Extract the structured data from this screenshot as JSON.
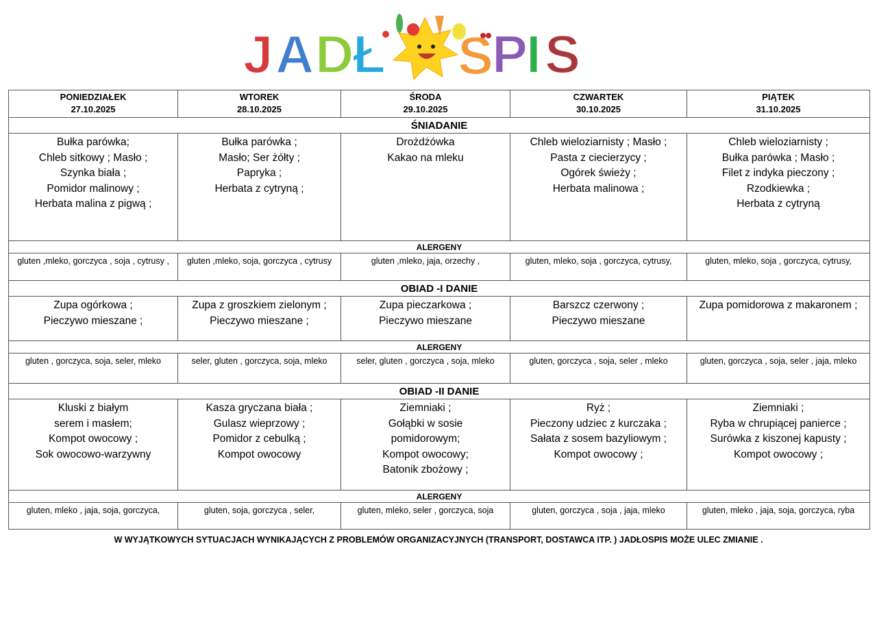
{
  "logo": {
    "text": "JADŁOSPIS"
  },
  "days": [
    {
      "name": "PONIEDZIAŁEK",
      "date": "27.10.2025"
    },
    {
      "name": "WTOREK",
      "date": "28.10.2025"
    },
    {
      "name": "ŚRODA",
      "date": "29.10.2025"
    },
    {
      "name": "CZWARTEK",
      "date": "30.10.2025"
    },
    {
      "name": "PIĄTEK",
      "date": "31.10.2025"
    }
  ],
  "sections": {
    "breakfast": "ŚNIADANIE",
    "lunch1": "OBIAD -I DANIE",
    "lunch2": "OBIAD -II DANIE",
    "allergens": "ALERGENY"
  },
  "breakfast": [
    [
      "Bułka parówka;",
      "Chleb sitkowy ; Masło ;",
      "Szynka biała ;",
      "Pomidor malinowy ;",
      "Herbata  malina z pigwą ;"
    ],
    [
      "Bułka parówka ;",
      "Masło; Ser żółty  ;",
      "Papryka  ;",
      "Herbata z cytryną ;"
    ],
    [
      "Drożdżówka",
      "Kakao na mleku"
    ],
    [
      "Chleb wieloziarnisty  ; Masło ;",
      "Pasta z ciecierzycy  ;",
      "Ogórek świeży ;",
      "Herbata malinowa  ;"
    ],
    [
      "Chleb wieloziarnisty ;",
      "Bułka parówka  ; Masło ;",
      "Filet z indyka pieczony   ;",
      "Rzodkiewka ;",
      "Herbata z cytryną"
    ]
  ],
  "breakfast_allergens": [
    "gluten ,mleko, gorczyca , soja , cytrusy ,",
    "gluten ,mleko, soja, gorczyca , cytrusy",
    "gluten ,mleko, jaja, orzechy  ,",
    "gluten, mleko, soja , gorczyca, cytrusy,",
    "gluten, mleko, soja , gorczyca, cytrusy,"
  ],
  "lunch1": [
    [
      "Zupa ogórkowa  ;",
      "Pieczywo mieszane   ;"
    ],
    [
      "Zupa z groszkiem zielonym   ;",
      "Pieczywo mieszane ;"
    ],
    [
      "Zupa pieczarkowa  ;",
      "Pieczywo mieszane"
    ],
    [
      "Barszcz czerwony   ;",
      "Pieczywo mieszane"
    ],
    [
      "Zupa pomidorowa z makaronem ;"
    ]
  ],
  "lunch1_allergens": [
    "gluten , gorczyca,  soja, seler,  mleko",
    "seler, gluten , gorczyca, soja, mleko",
    "seler, gluten , gorczyca , soja, mleko",
    "gluten,  gorczyca , soja, seler , mleko",
    "gluten,  gorczyca , soja, seler , jaja, mleko"
  ],
  "lunch2": [
    [
      "Kluski z białym",
      "serem i masłem;",
      "Kompot owocowy ;",
      "Sok owocowo-warzywny"
    ],
    [
      "Kasza gryczana biała ;",
      "Gulasz wieprzowy ;",
      "Pomidor z cebulką  ;",
      "Kompot owocowy"
    ],
    [
      "Ziemniaki ;",
      "Gołąbki w sosie",
      "pomidorowym;",
      "Kompot owocowy;",
      "Batonik zbożowy  ;"
    ],
    [
      "Ryż  ;",
      "Pieczony udziec z kurczaka  ;",
      "Sałata z sosem bazyliowym  ;",
      "Kompot owocowy ;"
    ],
    [
      "Ziemniaki  ;",
      "Ryba w chrupiącej panierce  ;",
      "Surówka z kiszonej kapusty ;",
      "Kompot owocowy ;"
    ]
  ],
  "lunch2_allergens": [
    "gluten,  mleko , jaja, soja, gorczyca,",
    "gluten, soja, gorczyca  , seler,",
    "gluten, mleko,  seler , gorczyca, soja",
    "gluten,  gorczyca , soja , jaja, mleko",
    "gluten,  mleko , jaja, soja, gorczyca, ryba"
  ],
  "footer": "W WYJĄTKOWYCH SYTUACJACH WYNIKAJĄCYCH Z PROBLEMÓW ORGANIZACYJNYCH (TRANSPORT, DOSTAWCA ITP. )  JADŁOSPIS MOŻE ULEC ZMIANIE ."
}
